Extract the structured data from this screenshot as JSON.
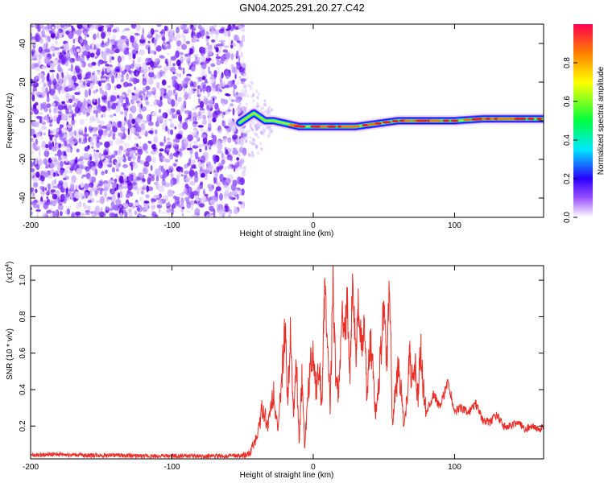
{
  "title": "GN04.2025.291.20.27.C42",
  "chart_data": [
    {
      "type": "heatmap",
      "title": "",
      "xlabel": "Height of straight line (km)",
      "ylabel": "Frequency (Hz)",
      "xlim": [
        -200,
        163
      ],
      "ylim": [
        -50,
        50
      ],
      "xticks": [
        -200,
        -100,
        0,
        100
      ],
      "yticks": [
        -40,
        -20,
        0,
        20,
        40
      ],
      "noise_region_km": [
        -200,
        -52
      ],
      "ridge": {
        "description": "Narrow high-amplitude frequency ridge near 0 Hz",
        "height_km": [
          -52,
          -46,
          -42,
          -38,
          -34,
          -28,
          -22,
          -16,
          -10,
          -4,
          0,
          10,
          20,
          30,
          40,
          50,
          60,
          80,
          100,
          120,
          140,
          163
        ],
        "frequency_hz": [
          -1,
          2,
          4,
          2,
          0,
          0,
          -1,
          -2,
          -3,
          -3,
          -3,
          -3,
          -3,
          -3,
          -2,
          -1,
          0,
          0,
          0,
          1,
          1,
          1
        ]
      },
      "colorbar": {
        "label": "Normalized spectral amplitude",
        "range": [
          0,
          1
        ],
        "ticks": [
          "0.0",
          "0.2",
          "0.4",
          "0.6",
          "0.8"
        ]
      }
    },
    {
      "type": "line",
      "title": "",
      "xlabel": "Height of straight line (km)",
      "ylabel": "SNR (10 * v/v)",
      "yscale_label": "(x10",
      "yscale_exp": "4",
      "xlim": [
        -200,
        163
      ],
      "ylim": [
        0.02,
        1.08
      ],
      "xticks": [
        -200,
        -100,
        0,
        100
      ],
      "yticks": [
        0.2,
        0.4,
        0.6,
        0.8,
        1.0
      ],
      "color": "#e8302a",
      "series": [
        {
          "name": "SNR",
          "x": [
            -200,
            -180,
            -160,
            -140,
            -120,
            -100,
            -80,
            -60,
            -50,
            -45,
            -40,
            -36,
            -32,
            -28,
            -25,
            -22,
            -20,
            -18,
            -16,
            -14,
            -12,
            -10,
            -8,
            -6,
            -4,
            -2,
            0,
            2,
            4,
            6,
            8,
            10,
            12,
            14,
            16,
            18,
            20,
            22,
            24,
            26,
            28,
            30,
            32,
            34,
            36,
            38,
            40,
            42,
            44,
            46,
            48,
            50,
            52,
            54,
            56,
            58,
            60,
            62,
            64,
            66,
            68,
            70,
            72,
            74,
            76,
            78,
            80,
            85,
            90,
            95,
            100,
            105,
            110,
            115,
            120,
            125,
            130,
            135,
            140,
            145,
            150,
            155,
            160,
            163
          ],
          "y": [
            0.04,
            0.045,
            0.04,
            0.04,
            0.035,
            0.035,
            0.035,
            0.035,
            0.035,
            0.05,
            0.14,
            0.3,
            0.2,
            0.4,
            0.15,
            0.5,
            0.72,
            0.35,
            0.75,
            0.25,
            0.58,
            0.12,
            0.45,
            0.08,
            0.35,
            0.52,
            0.62,
            0.4,
            0.55,
            0.32,
            0.94,
            0.68,
            0.3,
            0.99,
            0.45,
            0.36,
            0.82,
            0.66,
            0.88,
            0.52,
            0.99,
            0.56,
            0.88,
            0.62,
            0.79,
            0.35,
            0.68,
            0.58,
            0.26,
            0.42,
            0.62,
            0.88,
            0.55,
            0.98,
            0.22,
            0.38,
            0.5,
            0.44,
            0.18,
            0.3,
            0.6,
            0.44,
            0.52,
            0.35,
            0.62,
            0.4,
            0.28,
            0.38,
            0.3,
            0.45,
            0.28,
            0.3,
            0.27,
            0.32,
            0.23,
            0.22,
            0.26,
            0.2,
            0.2,
            0.22,
            0.18,
            0.2,
            0.18,
            0.2
          ]
        }
      ]
    }
  ]
}
